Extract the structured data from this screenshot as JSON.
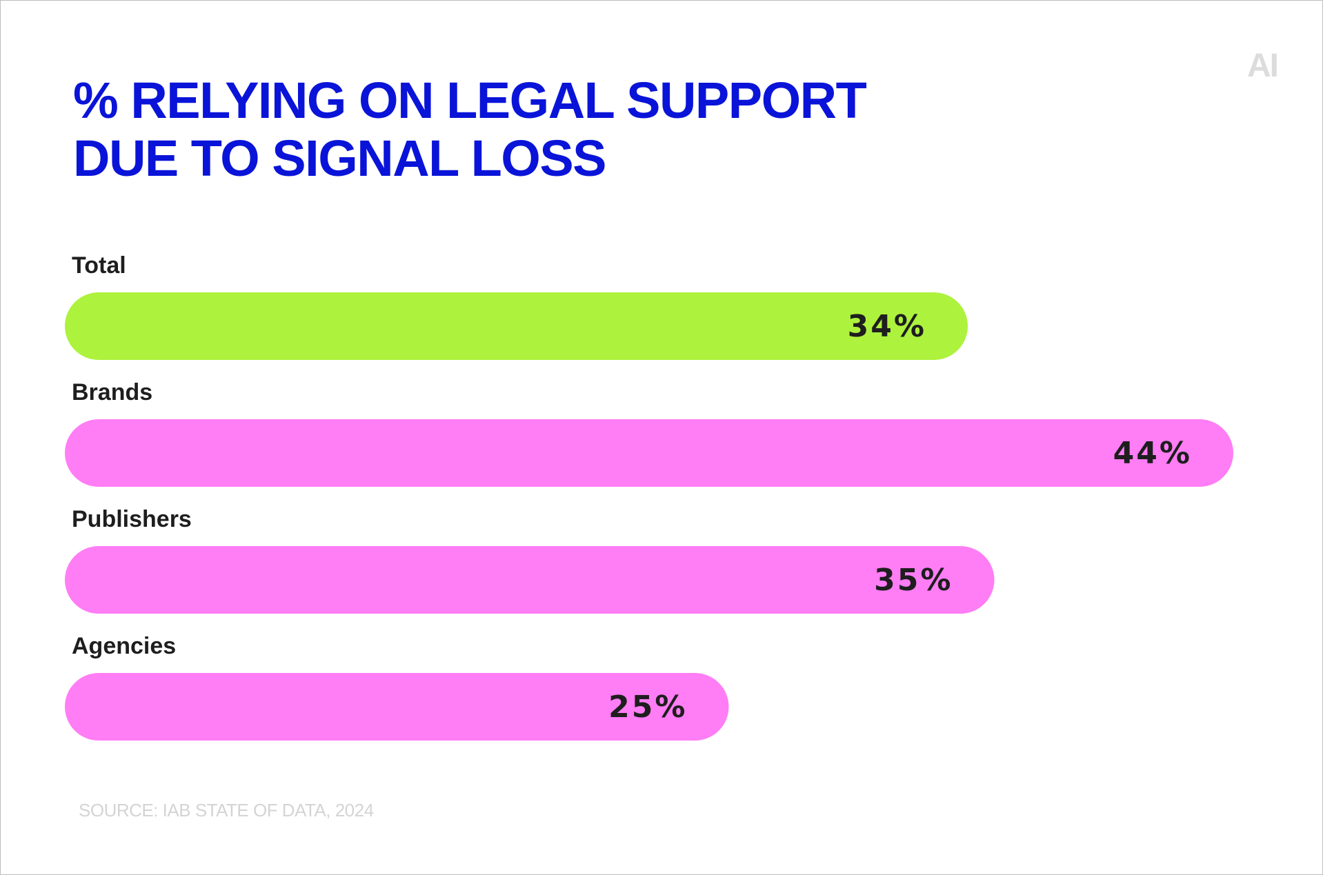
{
  "logo_text": "AI",
  "chart_data": {
    "type": "bar",
    "orientation": "horizontal",
    "title_lines": [
      "% RELYING ON LEGAL SUPPORT",
      "DUE TO SIGNAL LOSS"
    ],
    "categories": [
      "Total",
      "Brands",
      "Publishers",
      "Agencies"
    ],
    "values": [
      34,
      44,
      35,
      25
    ],
    "value_labels": [
      "34%",
      "44%",
      "35%",
      "25%"
    ],
    "value_suffix": "%",
    "bar_colors": [
      "#adf23d",
      "#ff7df5",
      "#ff7df5",
      "#ff7df5"
    ],
    "xlabel": "",
    "ylabel": "",
    "grid": false,
    "legend": "none"
  },
  "source": "SOURCE: IAB STATE OF DATA, 2024",
  "colors": {
    "title": "#0a14d8",
    "label": "#1e1e1e",
    "value_label": "#1e1e1e",
    "source": "#d4d4d4",
    "logo": "#dcdcdc"
  }
}
